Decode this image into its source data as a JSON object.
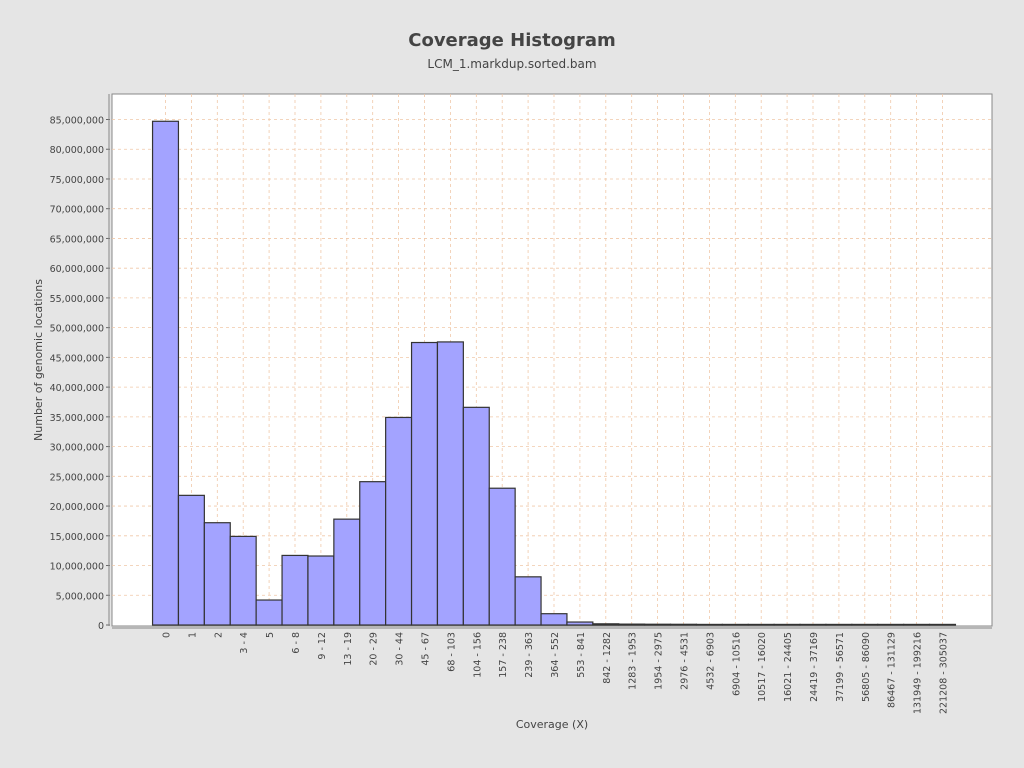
{
  "chart_data": {
    "type": "bar",
    "title": "Coverage Histogram",
    "subtitle": "LCM_1.markdup.sorted.bam",
    "xlabel": "Coverage (X)",
    "ylabel": "Number of genomic locations",
    "ylim": [
      0,
      90000000
    ],
    "yticks": [
      0,
      5000000,
      10000000,
      15000000,
      20000000,
      25000000,
      30000000,
      35000000,
      40000000,
      45000000,
      50000000,
      55000000,
      60000000,
      65000000,
      70000000,
      75000000,
      80000000,
      85000000
    ],
    "ytick_labels": [
      "0",
      "5,000,000",
      "10,000,000",
      "15,000,000",
      "20,000,000",
      "25,000,000",
      "30,000,000",
      "35,000,000",
      "40,000,000",
      "45,000,000",
      "50,000,000",
      "55,000,000",
      "60,000,000",
      "65,000,000",
      "70,000,000",
      "75,000,000",
      "80,000,000",
      "85,000,000"
    ],
    "categories": [
      "0",
      "1",
      "2",
      "3 - 4",
      "5",
      "6 - 8",
      "9 - 12",
      "13 - 19",
      "20 - 29",
      "30 - 44",
      "45 - 67",
      "68 - 103",
      "104 - 156",
      "157 - 238",
      "239 - 363",
      "364 - 552",
      "553 - 841",
      "842 - 1282",
      "1283 - 1953",
      "1954 - 2975",
      "2976 - 4531",
      "4532 - 6903",
      "6904 - 10516",
      "10517 - 16020",
      "16021 - 24405",
      "24419 - 37169",
      "37199 - 56571",
      "56805 - 86090",
      "86467 - 131129",
      "131949 - 199216",
      "221208 - 305037"
    ],
    "values": [
      84700000,
      21800000,
      17200000,
      14900000,
      4200000,
      11700000,
      11600000,
      17800000,
      24100000,
      34900000,
      47500000,
      47600000,
      36600000,
      23000000,
      8100000,
      1900000,
      500000,
      200000,
      150000,
      130000,
      120000,
      50000,
      30000,
      20000,
      15000,
      10000,
      8000,
      5000,
      4000,
      3000,
      2000
    ],
    "grid": true,
    "colors": {
      "background": "#e5e5e5",
      "plot_background": "#ffffff",
      "bar_fill": "#a3a3ff",
      "bar_stroke": "#333333",
      "grid": "#f0c8a8",
      "text": "#444444"
    }
  }
}
